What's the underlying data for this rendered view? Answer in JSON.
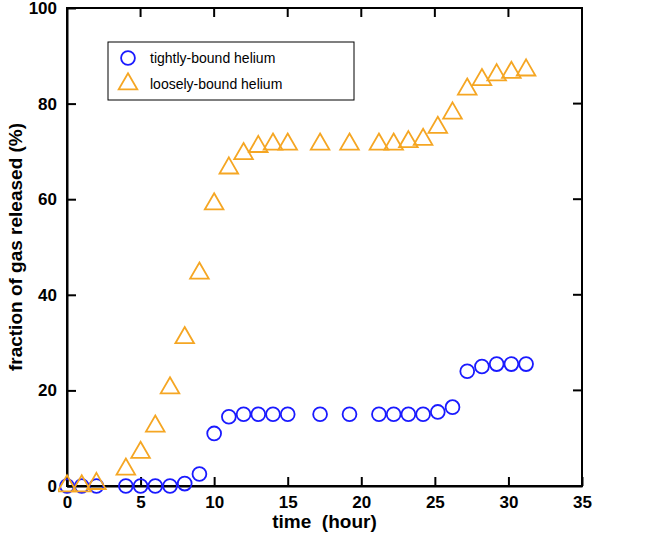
{
  "chart_data": {
    "type": "scatter",
    "x_label": "time  (hour)",
    "y_label": "fraction of gas released (%)",
    "x": [
      0,
      1,
      2,
      4,
      5,
      6,
      7,
      8,
      9,
      10,
      11,
      12,
      13,
      14,
      15,
      17.2,
      19.2,
      21.2,
      22.2,
      23.2,
      24.2,
      25.2,
      26.2,
      27.2,
      28.2,
      29.2,
      30.2,
      31.2
    ],
    "series": [
      {
        "name": "tightly-bound helium",
        "color": "#1a1aff",
        "marker": "circle",
        "values": [
          0,
          0,
          0,
          0,
          0,
          0,
          0,
          0.5,
          2.5,
          11,
          14.5,
          15,
          15,
          15,
          15,
          15,
          15,
          15,
          15,
          15,
          15,
          15.5,
          16.5,
          24,
          25,
          25.5,
          25.5,
          25.5
        ]
      },
      {
        "name": "loosely-bound helium",
        "color": "#f5a623",
        "marker": "triangle",
        "values": [
          0,
          0,
          0.5,
          3.5,
          7,
          12.5,
          20.5,
          31,
          44.5,
          59,
          66.5,
          69.5,
          71,
          71.5,
          71.5,
          71.5,
          71.5,
          71.5,
          71.5,
          72,
          72.5,
          75,
          78,
          83,
          85,
          86,
          86.5,
          87
        ]
      }
    ],
    "xlim": [
      0,
      35
    ],
    "ylim": [
      0,
      100
    ],
    "xticks": [
      0,
      5,
      10,
      15,
      20,
      25,
      30,
      35
    ],
    "yticks": [
      0,
      20,
      40,
      60,
      80,
      100
    ],
    "legend": "upper left",
    "grid": false
  }
}
